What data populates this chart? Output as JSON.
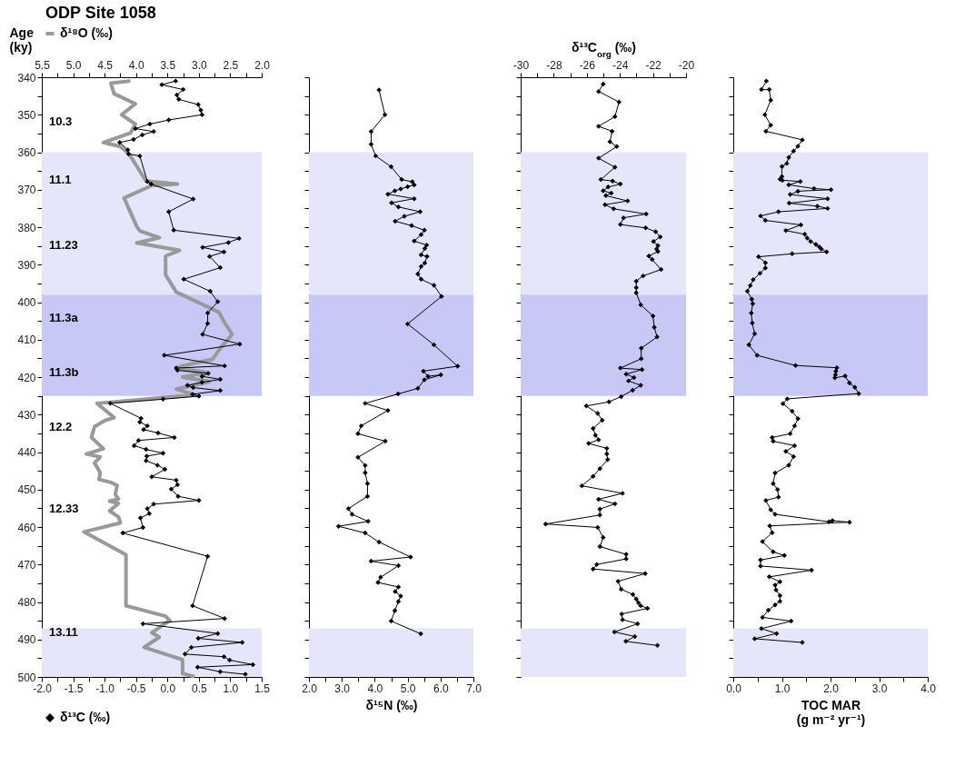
{
  "chart_data": [
    {
      "type": "line",
      "title": "ODP Site 1058",
      "ylabel": "Age\n(ky)",
      "marker": "diamond",
      "legend": "top left",
      "ylim": [
        500,
        340
      ],
      "yticks": [
        340,
        {
          "value": 345,
          "label": null
        },
        350,
        {
          "value": 355,
          "label": null
        },
        360,
        {
          "value": 365,
          "label": null
        },
        370,
        {
          "value": 375,
          "label": null
        },
        380,
        {
          "value": 385,
          "label": null
        },
        390,
        {
          "value": 395,
          "label": null
        },
        400,
        {
          "value": 405,
          "label": null
        },
        410,
        {
          "value": 415,
          "label": null
        },
        420,
        {
          "value": 425,
          "label": null
        },
        430,
        {
          "value": 435,
          "label": null
        },
        440,
        {
          "value": 445,
          "label": null
        },
        450,
        {
          "value": 455,
          "label": null
        },
        460,
        {
          "value": 465,
          "label": null
        },
        470,
        {
          "value": 475,
          "label": null
        },
        480,
        {
          "value": 485,
          "label": null
        },
        490,
        {
          "value": 495,
          "label": null
        },
        500
      ],
      "xlim": [
        -2,
        1.5
      ],
      "xticks": [
        {
          "value": -2,
          "label": "-2.0"
        },
        {
          "value": -1.75,
          "label": null
        },
        {
          "value": -1.5,
          "label": "-1.5"
        },
        {
          "value": -1.25,
          "label": null
        },
        {
          "value": -1,
          "label": "-1.0"
        },
        {
          "value": -0.75,
          "label": null
        },
        {
          "value": -0.5,
          "label": "-0.5"
        },
        {
          "value": -0.25,
          "label": null
        },
        {
          "value": 0,
          "label": "0.0"
        },
        {
          "value": 0.25,
          "label": null
        },
        {
          "value": 0.5,
          "label": "0.5"
        },
        {
          "value": 0.75,
          "label": null
        },
        {
          "value": 1,
          "label": "1.0"
        },
        {
          "value": 1.25,
          "label": null
        },
        {
          "value": 1.5,
          "label": "1.5"
        }
      ],
      "x2lim": [
        5.5,
        2
      ],
      "x2ticks": [
        {
          "value": 5.5,
          "label": "5.5"
        },
        {
          "value": 5.25,
          "label": null
        },
        {
          "value": 5,
          "label": "5.0"
        },
        {
          "value": 4.75,
          "label": null
        },
        {
          "value": 4.5,
          "label": "4.5"
        },
        {
          "value": 4.25,
          "label": null
        },
        {
          "value": 4,
          "label": "4.0"
        },
        {
          "value": 3.75,
          "label": null
        },
        {
          "value": 3.5,
          "label": "3.5"
        },
        {
          "value": 3.25,
          "label": null
        },
        {
          "value": 3,
          "label": "3.0"
        },
        {
          "value": 2.75,
          "label": null
        },
        {
          "value": 2.5,
          "label": "2.5"
        },
        {
          "value": 2.25,
          "label": null
        },
        {
          "value": 2,
          "label": "2.0"
        }
      ],
      "bands": [
        {
          "axis": "y",
          "from": 360,
          "to": 398,
          "color": "#e6e6fa"
        },
        {
          "axis": "y",
          "from": 398,
          "to": 425,
          "color": "#c8c8f6"
        },
        {
          "axis": "y",
          "from": 487,
          "to": 500,
          "color": "#e6e6fa"
        }
      ],
      "annotations": [
        "10.3",
        "11.1",
        "11.23",
        "11.3a",
        "11.3b",
        "12.2",
        "12.33",
        "13.11"
      ],
      "series": [
        {
          "name": "δ¹³C (‰)",
          "color": "#000000",
          "x": [
            0.13,
            -0.09,
            0.25,
            0.15,
            0.18,
            0.49,
            0.53,
            0.55,
            0.02,
            -0.28,
            -0.51,
            -0.22,
            -0.4,
            -0.54,
            -0.76,
            -0.63,
            -0.62,
            -0.44,
            -0.32,
            -0.26,
            0.41,
            0.02,
            0.1,
            1.14,
            0.97,
            0.56,
            0.9,
            0.67,
            0.84,
            0.26,
            0.68,
            0.8,
            0.64,
            0.64,
            0.56,
            1.15,
            -0.05,
            0.91,
            0.14,
            0.16,
            0.65,
            0.55,
            0.84,
            0.55,
            0.32,
            0.41,
            0.84,
            0.4,
            0.5,
            -0.07,
            -0.91,
            -0.42,
            -0.44,
            -0.32,
            -0.38,
            -0.15,
            0.11,
            -0.46,
            -0.53,
            -0.34,
            -0.07,
            -0.33,
            -0.34,
            -0.16,
            -0.04,
            -0.25,
            0.14,
            0.16,
            0.06,
            0.17,
            0.5,
            -0.22,
            -0.32,
            -0.29,
            -0.43,
            -0.39,
            -0.71,
            0.64,
            0.4,
            0.91,
            -0.39,
            0.8,
            0.49,
            1.19,
            0.38,
            0.28,
            0.9,
            0.99,
            1.36,
            0.48,
            0.84,
            1.24
          ],
          "values": [
            341.0,
            342.0,
            343.3,
            344.7,
            345.9,
            347.3,
            348.8,
            350.0,
            351.4,
            352.5,
            353.7,
            354.5,
            355.4,
            356.6,
            357.4,
            359.4,
            360.5,
            361.0,
            367.8,
            368.5,
            372.5,
            375.9,
            380.8,
            383.0,
            384.1,
            385.4,
            386.6,
            387.8,
            390.8,
            393.9,
            397.1,
            399.9,
            402.9,
            405.7,
            408.6,
            411.2,
            414.2,
            417.0,
            417.6,
            418.2,
            419.0,
            419.8,
            420.6,
            421.4,
            422.2,
            422.8,
            423.6,
            424.6,
            425.1,
            425.9,
            427.0,
            431.0,
            432.0,
            433.0,
            434.0,
            434.9,
            436.1,
            436.9,
            438.3,
            439.3,
            440.3,
            441.1,
            442.3,
            443.5,
            444.6,
            446.6,
            447.5,
            448.7,
            449.9,
            451.8,
            452.9,
            453.9,
            455.1,
            456.4,
            457.6,
            460.1,
            461.6,
            467.8,
            481.0,
            484.4,
            485.8,
            488.4,
            489.7,
            490.8,
            492.1,
            493.9,
            494.6,
            495.5,
            496.7,
            497.4,
            498.6,
            499.3
          ]
        },
        {
          "name": "δ¹⁸O (‰)",
          "color": "#999999",
          "axis": "x2",
          "marker": "none",
          "x": [
            4.09,
            4.4,
            4.35,
            4.01,
            4.23,
            4.01,
            4.09,
            4.52,
            4.25,
            4.11,
            3.84,
            3.34,
            3.75,
            4.19,
            3.99,
            3.94,
            3.63,
            3.99,
            3.31,
            3.53,
            3.53,
            3.36,
            2.68,
            2.59,
            2.47,
            2.64,
            2.78,
            3.26,
            3.36,
            2.88,
            3.26,
            2.83,
            3.36,
            3.07,
            4.62,
            4.35,
            4.5,
            4.66,
            4.71,
            4.52,
            4.79,
            4.57,
            4.66,
            4.57,
            4.59,
            4.4,
            4.3,
            4.33,
            4.28,
            4.42,
            4.28,
            4.42,
            4.28,
            4.25,
            4.83,
            4.16,
            4.16,
            3.53,
            3.46,
            3.58,
            3.75,
            3.63,
            3.87,
            3.48,
            3.26,
            3.26,
            3.07
          ],
          "values": [
            341.0,
            341.6,
            344.4,
            347.1,
            350.0,
            352.5,
            354.9,
            357.4,
            358.5,
            360.5,
            367.7,
            368.5,
            368.9,
            372.2,
            379.8,
            381.0,
            382.8,
            384.2,
            386.2,
            387.7,
            392.7,
            397.3,
            402.7,
            405.5,
            408.6,
            411.9,
            415.2,
            417.0,
            417.6,
            418.8,
            420.0,
            421.2,
            423.2,
            424.7,
            427.0,
            430.8,
            431.6,
            433.2,
            436.1,
            439.1,
            440.5,
            441.3,
            442.9,
            445.5,
            447.3,
            448.1,
            448.9,
            451.3,
            452.5,
            453.1,
            453.7,
            455.7,
            457.3,
            458.9,
            461.3,
            467.4,
            481.0,
            483.8,
            485.0,
            486.2,
            488.2,
            489.4,
            492.1,
            494.2,
            495.4,
            499.1,
            499.9
          ]
        }
      ]
    },
    {
      "type": "line",
      "xlabel": "δ¹⁵N (‰)",
      "marker": "diamond",
      "tick_labels": "x",
      "ylim": [
        500,
        340
      ],
      "yticks": [
        340,
        {
          "value": 345,
          "label": null
        },
        350,
        {
          "value": 355,
          "label": null
        },
        360,
        {
          "value": 365,
          "label": null
        },
        370,
        {
          "value": 375,
          "label": null
        },
        380,
        {
          "value": 385,
          "label": null
        },
        390,
        {
          "value": 395,
          "label": null
        },
        400,
        {
          "value": 405,
          "label": null
        },
        410,
        {
          "value": 415,
          "label": null
        },
        420,
        {
          "value": 425,
          "label": null
        },
        430,
        {
          "value": 435,
          "label": null
        },
        440,
        {
          "value": 445,
          "label": null
        },
        450,
        {
          "value": 455,
          "label": null
        },
        460,
        {
          "value": 465,
          "label": null
        },
        470,
        {
          "value": 475,
          "label": null
        },
        480,
        {
          "value": 485,
          "label": null
        },
        490,
        {
          "value": 495,
          "label": null
        },
        500
      ],
      "xlim": [
        2,
        7
      ],
      "xticks": [
        {
          "value": 2,
          "label": "2.0"
        },
        {
          "value": 2.5,
          "label": null
        },
        {
          "value": 3,
          "label": "3.0"
        },
        {
          "value": 3.5,
          "label": null
        },
        {
          "value": 4,
          "label": "4.0"
        },
        {
          "value": 4.5,
          "label": null
        },
        {
          "value": 5,
          "label": "5.0"
        },
        {
          "value": 5.5,
          "label": null
        },
        {
          "value": 6,
          "label": "6.0"
        },
        {
          "value": 6.5,
          "label": null
        },
        {
          "value": 7,
          "label": "7.0"
        }
      ],
      "bands": [
        {
          "axis": "y",
          "from": 360,
          "to": 398,
          "color": "#e6e6fa"
        },
        {
          "axis": "y",
          "from": 398,
          "to": 425,
          "color": "#c8c8f6"
        },
        {
          "axis": "y",
          "from": 487,
          "to": 500,
          "color": "#e6e6fa"
        }
      ],
      "series": [
        {
          "color": "#000000",
          "x": [
            4.13,
            4.31,
            3.89,
            3.89,
            4.03,
            4.5,
            4.82,
            5.14,
            5.2,
            5.0,
            4.79,
            4.61,
            4.4,
            5.2,
            4.51,
            4.72,
            5.38,
            4.9,
            4.62,
            5.12,
            5.51,
            5.41,
            5.2,
            5.58,
            5.52,
            5.41,
            5.59,
            5.52,
            5.41,
            5.31,
            5.41,
            5.8,
            6.03,
            5.0,
            5.8,
            6.52,
            5.48,
            5.62,
            6.01,
            5.51,
            5.31,
            4.71,
            3.71,
            4.4,
            3.59,
            3.49,
            4.32,
            3.49,
            3.71,
            3.71,
            3.78,
            3.78,
            3.2,
            3.31,
            3.8,
            2.9,
            3.71,
            4.13,
            5.09,
            3.89,
            4.72,
            4.18,
            4.1,
            4.72,
            4.62,
            4.79,
            4.72,
            4.61,
            4.5,
            5.4
          ],
          "values": [
            343.4,
            350.0,
            354.5,
            357.9,
            361.0,
            363.9,
            367.3,
            367.9,
            368.7,
            369.2,
            369.8,
            370.3,
            371.2,
            372.4,
            373.5,
            374.6,
            375.9,
            377.1,
            378.4,
            379.6,
            380.8,
            382.0,
            383.7,
            384.8,
            385.7,
            387.4,
            387.8,
            389.6,
            390.5,
            392.5,
            393.9,
            395.5,
            398.5,
            405.8,
            411.4,
            417.1,
            418.4,
            419.8,
            419.4,
            420.7,
            423.0,
            424.5,
            427.0,
            428.9,
            433.0,
            435.1,
            437.1,
            441.4,
            443.6,
            445.5,
            448.4,
            451.8,
            455.1,
            456.6,
            458.5,
            459.8,
            461.6,
            464.0,
            468.0,
            469.1,
            470.3,
            473.4,
            474.8,
            476.0,
            477.2,
            478.4,
            479.9,
            482.3,
            485.1,
            488.5
          ]
        }
      ]
    },
    {
      "type": "line",
      "xlabel": "δ¹³C$_{org}$ (‰)",
      "marker": "diamond",
      "tick_labels": "x",
      "ylim": [
        500,
        340
      ],
      "yticks": [
        340,
        {
          "value": 345,
          "label": null
        },
        350,
        {
          "value": 355,
          "label": null
        },
        360,
        {
          "value": 365,
          "label": null
        },
        370,
        {
          "value": 375,
          "label": null
        },
        380,
        {
          "value": 385,
          "label": null
        },
        390,
        {
          "value": 395,
          "label": null
        },
        400,
        {
          "value": 405,
          "label": null
        },
        410,
        {
          "value": 415,
          "label": null
        },
        420,
        {
          "value": 425,
          "label": null
        },
        430,
        {
          "value": 435,
          "label": null
        },
        440,
        {
          "value": 445,
          "label": null
        },
        450,
        {
          "value": 455,
          "label": null
        },
        460,
        {
          "value": 465,
          "label": null
        },
        470,
        {
          "value": 475,
          "label": null
        },
        480,
        {
          "value": 485,
          "label": null
        },
        490,
        {
          "value": 495,
          "label": null
        },
        500
      ],
      "xlim": [
        -30,
        -20
      ],
      "xticks": [
        -30,
        {
          "value": -29,
          "label": null
        },
        -28,
        {
          "value": -27,
          "label": null
        },
        -26,
        {
          "value": -25,
          "label": null
        },
        -24,
        {
          "value": -23,
          "label": null
        },
        -22,
        {
          "value": -21,
          "label": null
        },
        -20
      ],
      "bands": [
        {
          "axis": "y",
          "from": 360,
          "to": 398,
          "color": "#e6e6fa"
        },
        {
          "axis": "y",
          "from": 398,
          "to": 425,
          "color": "#c8c8f6"
        },
        {
          "axis": "y",
          "from": 487,
          "to": 500,
          "color": "#e6e6fa"
        }
      ],
      "series": [
        {
          "color": "#000000",
          "x": [
            -25.01,
            -25.29,
            -24.05,
            -24.3,
            -25.29,
            -24.47,
            -24.6,
            -24.19,
            -25.29,
            -24.3,
            -25.15,
            -24.44,
            -23.97,
            -24.71,
            -25.01,
            -24.52,
            -24.85,
            -23.53,
            -24.9,
            -24.38,
            -22.41,
            -23.78,
            -23.97,
            -22.44,
            -21.84,
            -21.56,
            -21.97,
            -21.7,
            -21.78,
            -21.7,
            -22.25,
            -22.05,
            -21.51,
            -22.6,
            -23.01,
            -23.01,
            -23.01,
            -22.74,
            -22.0,
            -21.92,
            -21.75,
            -22.71,
            -22.71,
            -23.97,
            -22.66,
            -23.62,
            -23.15,
            -23.48,
            -22.74,
            -23.23,
            -23.92,
            -24.66,
            -26.03,
            -25.34,
            -25.07,
            -25.62,
            -25.48,
            -25.29,
            -25.89,
            -24.79,
            -24.79,
            -24.74,
            -25.21,
            -25.62,
            -26.3,
            -23.84,
            -25.29,
            -24.3,
            -25.21,
            -25.21,
            -28.49,
            -25.34,
            -25.01,
            -25.21,
            -23.62,
            -23.62,
            -25.4,
            -25.62,
            -22.47,
            -24.11,
            -23.92,
            -23.21,
            -23.01,
            -22.88,
            -22.74,
            -22.33,
            -23.89,
            -23.84,
            -22.93,
            -24.33,
            -23.1,
            -23.64,
            -21.73
          ],
          "values": [
            341.8,
            343.8,
            346.6,
            350.5,
            353.1,
            354.4,
            357.2,
            358.5,
            361.6,
            364.0,
            367.3,
            367.7,
            368.5,
            369.3,
            370.3,
            370.9,
            371.6,
            373.0,
            374.0,
            375.1,
            376.5,
            377.5,
            379.3,
            380.2,
            381.2,
            382.6,
            383.8,
            384.9,
            385.8,
            386.5,
            387.7,
            388.6,
            391.3,
            393.0,
            394.4,
            396.1,
            397.5,
            400.7,
            403.7,
            406.7,
            409.3,
            412.3,
            415.1,
            417.6,
            418.0,
            419.2,
            420.1,
            421.0,
            422.2,
            423.5,
            425.2,
            426.6,
            427.7,
            429.7,
            431.5,
            433.7,
            435.5,
            436.7,
            437.7,
            439.0,
            440.5,
            442.0,
            444.4,
            446.5,
            449.0,
            451.0,
            452.6,
            453.8,
            455.2,
            456.8,
            459.2,
            460.1,
            462.8,
            465.2,
            467.3,
            468.5,
            470.0,
            471.2,
            472.4,
            474.5,
            476.6,
            478.0,
            479.2,
            480.2,
            481.0,
            481.7,
            483.2,
            484.7,
            485.8,
            488.0,
            489.2,
            490.5,
            491.6
          ]
        }
      ]
    },
    {
      "type": "line",
      "xlabel": "TOC MAR\n(g m⁻² yr⁻¹)",
      "marker": "diamond",
      "tick_labels": "x",
      "ylim": [
        500,
        340
      ],
      "yticks": [
        340,
        {
          "value": 345,
          "label": null
        },
        350,
        {
          "value": 355,
          "label": null
        },
        360,
        {
          "value": 365,
          "label": null
        },
        370,
        {
          "value": 375,
          "label": null
        },
        380,
        {
          "value": 385,
          "label": null
        },
        390,
        {
          "value": 395,
          "label": null
        },
        400,
        {
          "value": 405,
          "label": null
        },
        410,
        {
          "value": 415,
          "label": null
        },
        420,
        {
          "value": 425,
          "label": null
        },
        430,
        {
          "value": 435,
          "label": null
        },
        440,
        {
          "value": 445,
          "label": null
        },
        450,
        {
          "value": 455,
          "label": null
        },
        460,
        {
          "value": 465,
          "label": null
        },
        470,
        {
          "value": 475,
          "label": null
        },
        480,
        {
          "value": 485,
          "label": null
        },
        490,
        {
          "value": 495,
          "label": null
        },
        500
      ],
      "xlim": [
        0,
        4
      ],
      "xticks": [
        {
          "value": 0,
          "label": "0.0"
        },
        {
          "value": 0.5,
          "label": null
        },
        {
          "value": 1,
          "label": "1.0"
        },
        {
          "value": 1.5,
          "label": null
        },
        {
          "value": 2,
          "label": "2.0"
        },
        {
          "value": 2.5,
          "label": null
        },
        {
          "value": 3,
          "label": "3.0"
        },
        {
          "value": 3.5,
          "label": null
        },
        {
          "value": 4,
          "label": "4.0"
        }
      ],
      "bands": [
        {
          "axis": "y",
          "from": 360,
          "to": 398,
          "color": "#e6e6fa"
        },
        {
          "axis": "y",
          "from": 398,
          "to": 425,
          "color": "#c8c8f6"
        },
        {
          "axis": "y",
          "from": 487,
          "to": 500,
          "color": "#e6e6fa"
        }
      ],
      "series": [
        {
          "color": "#000000",
          "x": [
            0.68,
            0.58,
            0.74,
            0.77,
            0.65,
            0.77,
            0.67,
            1.42,
            1.33,
            1.24,
            1.14,
            1.1,
            1.0,
            1.0,
            0.96,
            1.01,
            1.38,
            1.14,
            1.66,
            2.01,
            1.33,
            1.17,
            1.94,
            1.15,
            1.73,
            1.94,
            0.93,
            0.56,
            0.66,
            1.39,
            1.08,
            1.47,
            1.52,
            1.59,
            1.7,
            1.77,
            1.81,
            1.92,
            1.21,
            0.52,
            0.66,
            0.66,
            0.55,
            0.41,
            0.35,
            0.29,
            0.38,
            0.4,
            0.37,
            0.39,
            0.44,
            0.32,
            0.49,
            1.28,
            2.13,
            2.11,
            2.1,
            2.09,
            2.3,
            2.39,
            2.5,
            2.58,
            1.11,
            1.02,
            1.21,
            1.33,
            1.26,
            1.17,
            0.8,
            0.82,
            1.26,
            1.08,
            1.24,
            1.14,
            0.86,
            0.82,
            0.91,
            0.93,
            0.67,
            0.77,
            0.86,
            1.97,
            2.04,
            2.39,
            0.75,
            0.8,
            0.6,
            0.82,
            1.05,
            0.56,
            0.56,
            1.61,
            0.74,
            0.96,
            0.86,
            0.88,
            0.96,
            0.96,
            0.86,
            0.72,
            0.6,
            1.19,
            0.58,
            0.89,
            0.44,
            1.42
          ],
          "values": [
            341.0,
            343.3,
            343.3,
            346.1,
            350.0,
            352.8,
            354.4,
            356.7,
            358.4,
            359.7,
            361.4,
            363.0,
            363.8,
            366.5,
            367.2,
            367.5,
            367.8,
            368.7,
            369.7,
            370.0,
            370.4,
            371.3,
            372.4,
            373.6,
            374.4,
            375.0,
            375.9,
            377.0,
            378.2,
            379.4,
            380.9,
            381.9,
            382.9,
            383.8,
            384.6,
            385.3,
            385.8,
            386.6,
            387.1,
            387.9,
            389.5,
            390.9,
            392.3,
            394.0,
            395.6,
            397.1,
            399.2,
            400.4,
            402.9,
            405.6,
            408.4,
            411.4,
            414.2,
            416.9,
            417.5,
            418.4,
            419.4,
            420.2,
            419.7,
            421.6,
            422.7,
            424.4,
            425.8,
            427.1,
            429.1,
            431.1,
            433.0,
            435.1,
            436.1,
            437.1,
            438.3,
            439.8,
            441.2,
            443.5,
            445.6,
            448.4,
            450.0,
            452.0,
            452.9,
            455.4,
            456.6,
            458.6,
            458.3,
            458.7,
            459.7,
            461.5,
            463.9,
            466.6,
            467.6,
            468.8,
            470.4,
            471.5,
            473.3,
            474.6,
            475.5,
            476.8,
            478.3,
            479.8,
            480.8,
            482.2,
            484.1,
            485.1,
            487.1,
            488.4,
            489.8,
            490.8
          ]
        }
      ]
    }
  ]
}
